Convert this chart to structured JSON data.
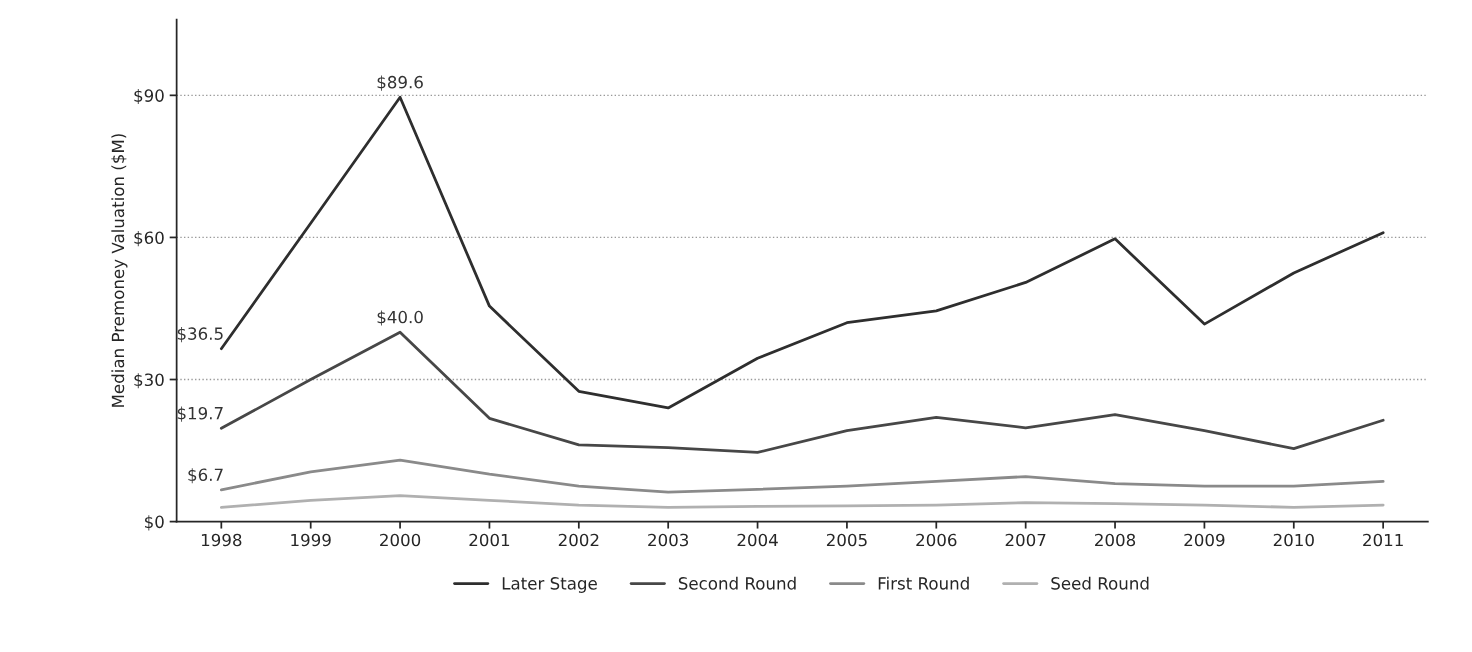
{
  "chart_data": {
    "type": "line",
    "ylabel": "Median Premoney Valuation ($M)",
    "categories": [
      "1998",
      "1999",
      "2000",
      "2001",
      "2002",
      "2003",
      "2004",
      "2005",
      "2006",
      "2007",
      "2008",
      "2009",
      "2010",
      "2011"
    ],
    "series": [
      {
        "name": "Later Stage",
        "color": "#2e2e2e",
        "values": [
          36.5,
          63,
          89.6,
          45.5,
          27.5,
          24,
          34.5,
          42,
          44.5,
          50.5,
          59.7,
          41.7,
          52.5,
          61
        ]
      },
      {
        "name": "Second Round",
        "color": "#474747",
        "values": [
          19.7,
          30,
          40.0,
          21.8,
          16.2,
          15.6,
          14.6,
          19.2,
          22,
          19.8,
          22.6,
          19.2,
          15.4,
          21.4
        ]
      },
      {
        "name": "First Round",
        "color": "#8a8a8a",
        "values": [
          6.7,
          10.5,
          13,
          10,
          7.5,
          6.2,
          6.8,
          7.5,
          8.5,
          9.5,
          8,
          7.5,
          7.5,
          8.5
        ]
      },
      {
        "name": "Seed Round",
        "color": "#b0b0b0",
        "values": [
          3,
          4.5,
          5.5,
          4.5,
          3.5,
          3,
          3.2,
          3.3,
          3.5,
          4,
          3.8,
          3.5,
          3,
          3.5
        ]
      }
    ],
    "ylim": [
      0,
      106
    ],
    "yticks": [
      {
        "value": 0,
        "label": "$0"
      },
      {
        "value": 30,
        "label": "$30"
      },
      {
        "value": 60,
        "label": "$60"
      },
      {
        "value": 90,
        "label": "$90"
      }
    ],
    "annotations": [
      {
        "text": "$36.5",
        "x": "1998",
        "y": 36.5
      },
      {
        "text": "$89.6",
        "x": "2000",
        "y": 89.6
      },
      {
        "text": "$40.0",
        "x": "2000",
        "y": 40.0
      },
      {
        "text": "$19.7",
        "x": "1998",
        "y": 19.7
      },
      {
        "text": "$6.7",
        "x": "1998",
        "y": 6.7
      }
    ],
    "grid": "y",
    "legend": "bottom",
    "line_style": "solid",
    "marker": "none"
  }
}
